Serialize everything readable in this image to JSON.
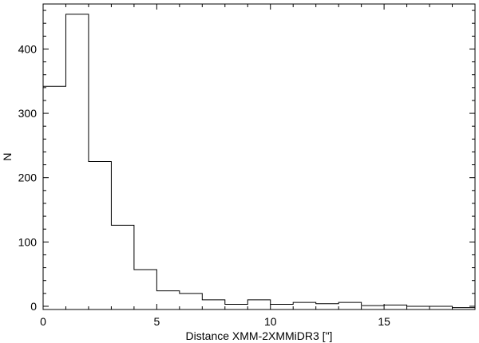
{
  "chart_data": {
    "type": "bar",
    "style": "step-histogram",
    "xlabel": "Distance XMM-2XMMiDR3 [\"]",
    "ylabel": "N",
    "xlim": [
      0,
      19
    ],
    "ylim": [
      -5,
      470
    ],
    "x_ticks": [
      0,
      5,
      10,
      15
    ],
    "y_ticks": [
      0,
      100,
      200,
      300,
      400
    ],
    "bin_edges": [
      0,
      1,
      2,
      3,
      4,
      5,
      6,
      7,
      8,
      9,
      10,
      11,
      12,
      13,
      14,
      15,
      16,
      17,
      18,
      19
    ],
    "values": [
      342,
      454,
      225,
      126,
      57,
      24,
      20,
      10,
      3,
      10,
      3,
      6,
      4,
      6,
      1,
      2,
      0,
      0,
      -2
    ],
    "grid": false,
    "color": "#000000"
  }
}
